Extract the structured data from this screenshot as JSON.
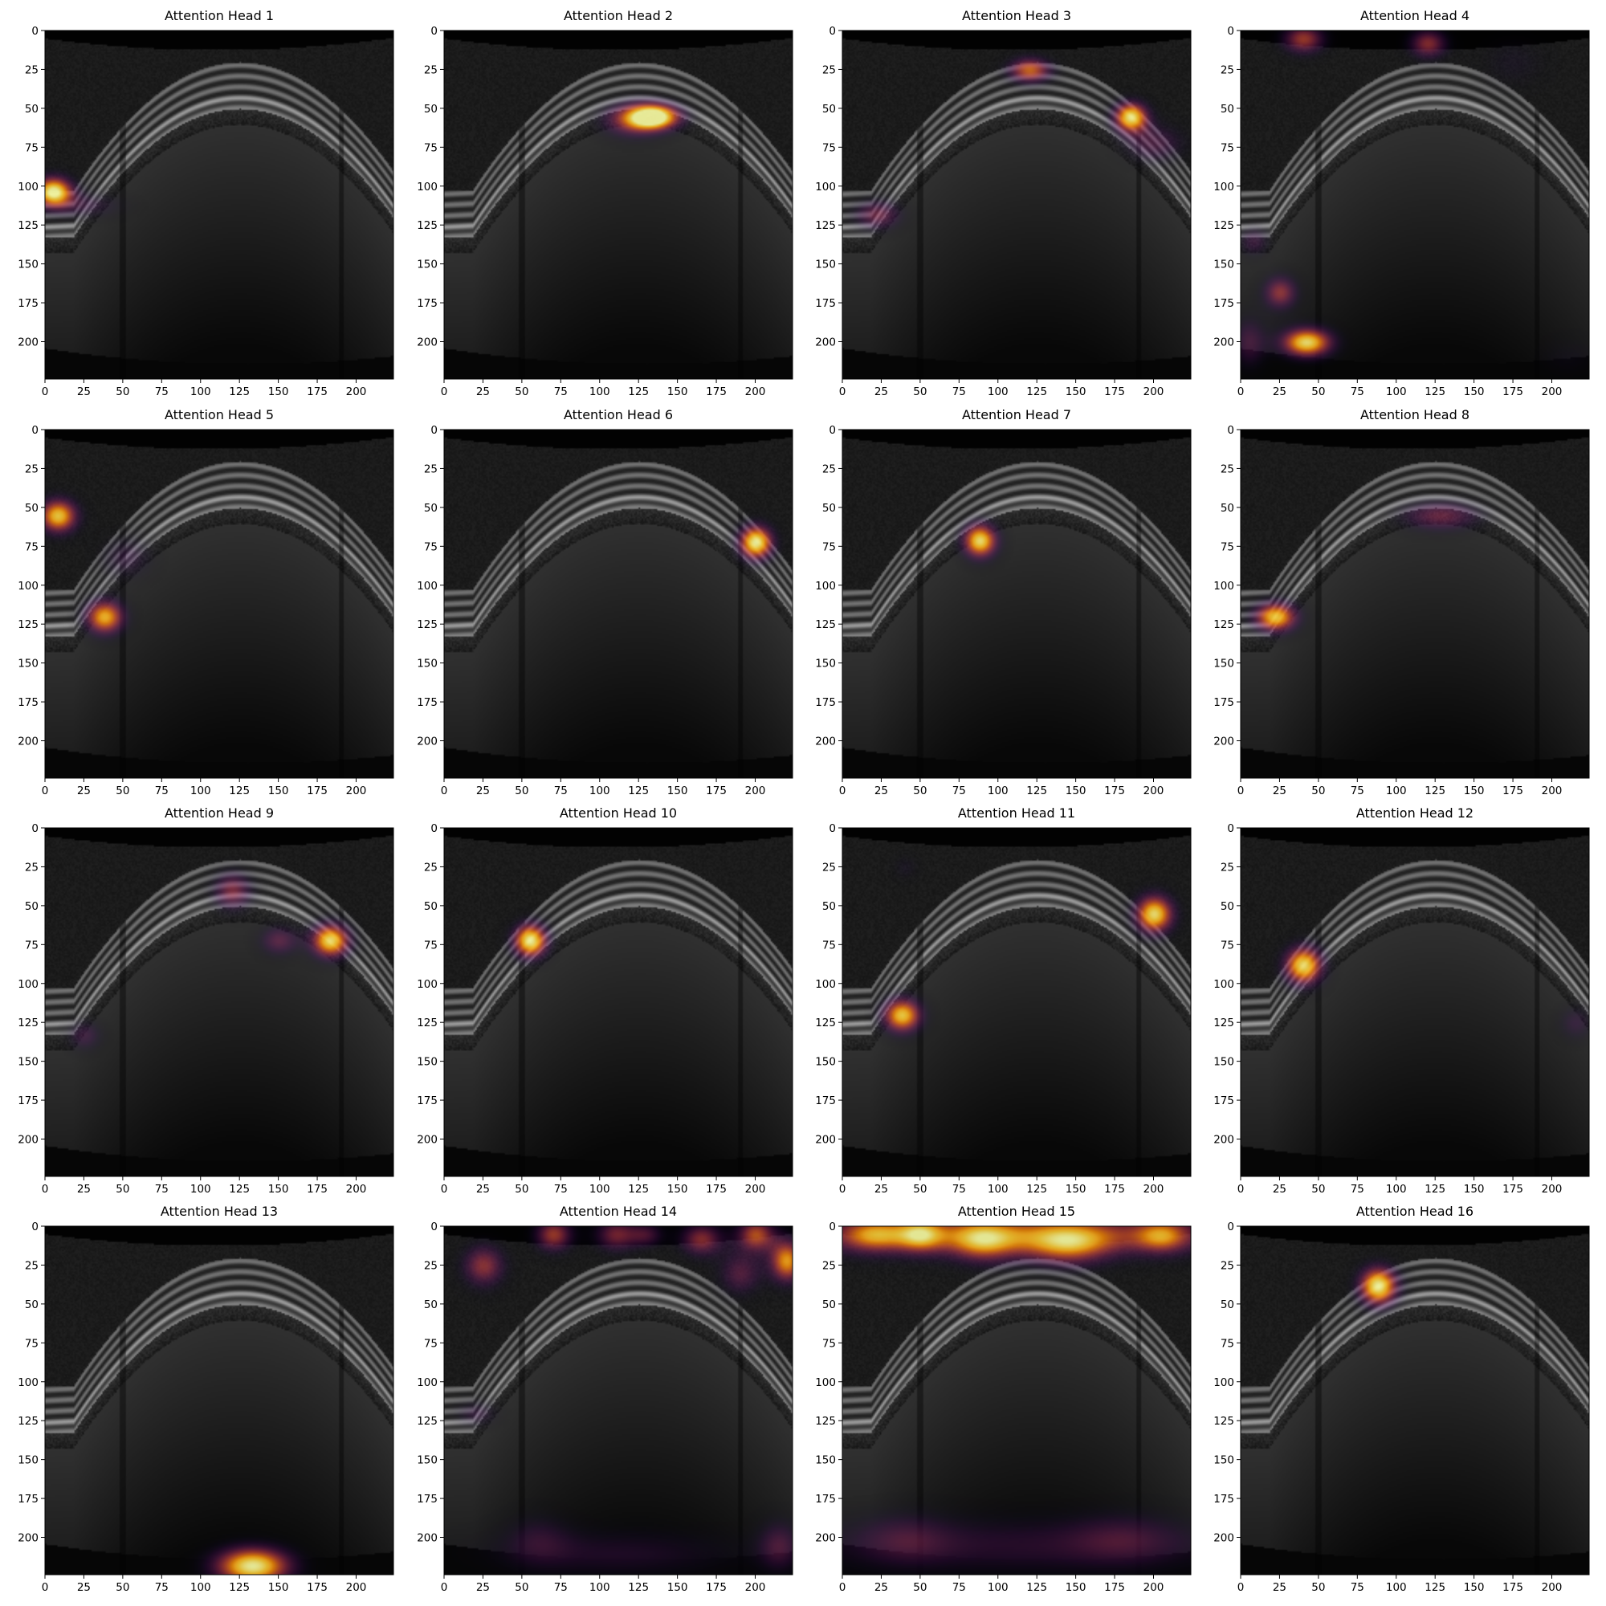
{
  "figure": {
    "colormap": "inferno",
    "background": "#ffffff"
  },
  "chart_data": [
    {
      "type": "heatmap",
      "title": "Attention Head 1",
      "xlim": [
        0,
        224
      ],
      "ylim": [
        224,
        0
      ],
      "xticks": [
        0,
        25,
        50,
        75,
        100,
        125,
        150,
        175,
        200
      ],
      "yticks": [
        0,
        25,
        50,
        75,
        100,
        125,
        150,
        175,
        200
      ],
      "hotspots": [
        {
          "x": 5,
          "y": 103,
          "sx": 9,
          "sy": 7,
          "v": 1.0
        },
        {
          "x": 25,
          "y": 112,
          "sx": 18,
          "sy": 6,
          "v": 0.25
        }
      ]
    },
    {
      "type": "heatmap",
      "title": "Attention Head 2",
      "xlim": [
        0,
        224
      ],
      "ylim": [
        224,
        0
      ],
      "xticks": [
        0,
        25,
        50,
        75,
        100,
        125,
        150,
        175,
        200
      ],
      "yticks": [
        0,
        25,
        50,
        75,
        100,
        125,
        150,
        175,
        200
      ],
      "hotspots": [
        {
          "x": 135,
          "y": 55,
          "sx": 12,
          "sy": 6,
          "v": 1.0
        },
        {
          "x": 120,
          "y": 57,
          "sx": 14,
          "sy": 8,
          "v": 0.5
        }
      ]
    },
    {
      "type": "heatmap",
      "title": "Attention Head 3",
      "xlim": [
        0,
        224
      ],
      "ylim": [
        224,
        0
      ],
      "xticks": [
        0,
        25,
        50,
        75,
        100,
        125,
        150,
        175,
        200
      ],
      "yticks": [
        0,
        25,
        50,
        75,
        100,
        125,
        150,
        175,
        200
      ],
      "hotspots": [
        {
          "x": 120,
          "y": 25,
          "sx": 10,
          "sy": 6,
          "v": 0.7
        },
        {
          "x": 185,
          "y": 55,
          "sx": 8,
          "sy": 7,
          "v": 0.95
        },
        {
          "x": 200,
          "y": 72,
          "sx": 14,
          "sy": 9,
          "v": 0.35
        },
        {
          "x": 22,
          "y": 118,
          "sx": 11,
          "sy": 7,
          "v": 0.45
        }
      ]
    },
    {
      "type": "heatmap",
      "title": "Attention Head 4",
      "xlim": [
        0,
        224
      ],
      "ylim": [
        224,
        0
      ],
      "xticks": [
        0,
        25,
        50,
        75,
        100,
        125,
        150,
        175,
        200
      ],
      "yticks": [
        0,
        25,
        50,
        75,
        100,
        125,
        150,
        175,
        200
      ],
      "hotspots": [
        {
          "x": 42,
          "y": 200,
          "sx": 12,
          "sy": 7,
          "v": 0.95
        },
        {
          "x": 25,
          "y": 168,
          "sx": 8,
          "sy": 8,
          "v": 0.55
        },
        {
          "x": 40,
          "y": 5,
          "sx": 10,
          "sy": 7,
          "v": 0.6
        },
        {
          "x": 120,
          "y": 8,
          "sx": 9,
          "sy": 7,
          "v": 0.55
        },
        {
          "x": 5,
          "y": 200,
          "sx": 8,
          "sy": 12,
          "v": 0.35
        },
        {
          "x": 8,
          "y": 135,
          "sx": 7,
          "sy": 7,
          "v": 0.3
        },
        {
          "x": 175,
          "y": 20,
          "sx": 15,
          "sy": 12,
          "v": 0.15
        },
        {
          "x": 210,
          "y": 210,
          "sx": 15,
          "sy": 10,
          "v": 0.12
        }
      ]
    },
    {
      "type": "heatmap",
      "title": "Attention Head 5",
      "xlim": [
        0,
        224
      ],
      "ylim": [
        224,
        0
      ],
      "xticks": [
        0,
        25,
        50,
        75,
        100,
        125,
        150,
        175,
        200
      ],
      "yticks": [
        0,
        25,
        50,
        75,
        100,
        125,
        150,
        175,
        200
      ],
      "hotspots": [
        {
          "x": 8,
          "y": 55,
          "sx": 9,
          "sy": 8,
          "v": 0.9
        },
        {
          "x": 38,
          "y": 120,
          "sx": 9,
          "sy": 8,
          "v": 0.85
        },
        {
          "x": 52,
          "y": 82,
          "sx": 12,
          "sy": 10,
          "v": 0.25
        }
      ]
    },
    {
      "type": "heatmap",
      "title": "Attention Head 6",
      "xlim": [
        0,
        224
      ],
      "ylim": [
        224,
        0
      ],
      "xticks": [
        0,
        25,
        50,
        75,
        100,
        125,
        150,
        175,
        200
      ],
      "yticks": [
        0,
        25,
        50,
        75,
        100,
        125,
        150,
        175,
        200
      ],
      "hotspots": [
        {
          "x": 200,
          "y": 72,
          "sx": 8,
          "sy": 8,
          "v": 1.0
        }
      ]
    },
    {
      "type": "heatmap",
      "title": "Attention Head 7",
      "xlim": [
        0,
        224
      ],
      "ylim": [
        224,
        0
      ],
      "xticks": [
        0,
        25,
        50,
        75,
        100,
        125,
        150,
        175,
        200
      ],
      "yticks": [
        0,
        25,
        50,
        75,
        100,
        125,
        150,
        175,
        200
      ],
      "hotspots": [
        {
          "x": 88,
          "y": 71,
          "sx": 8,
          "sy": 8,
          "v": 0.95
        }
      ]
    },
    {
      "type": "heatmap",
      "title": "Attention Head 8",
      "xlim": [
        0,
        224
      ],
      "ylim": [
        224,
        0
      ],
      "xticks": [
        0,
        25,
        50,
        75,
        100,
        125,
        150,
        175,
        200
      ],
      "yticks": [
        0,
        25,
        50,
        75,
        100,
        125,
        150,
        175,
        200
      ],
      "hotspots": [
        {
          "x": 22,
          "y": 120,
          "sx": 10,
          "sy": 7,
          "v": 0.9
        },
        {
          "x": 128,
          "y": 55,
          "sx": 18,
          "sy": 7,
          "v": 0.45
        }
      ]
    },
    {
      "type": "heatmap",
      "title": "Attention Head 9",
      "xlim": [
        0,
        224
      ],
      "ylim": [
        224,
        0
      ],
      "xticks": [
        0,
        25,
        50,
        75,
        100,
        125,
        150,
        175,
        200
      ],
      "yticks": [
        0,
        25,
        50,
        75,
        100,
        125,
        150,
        175,
        200
      ],
      "hotspots": [
        {
          "x": 183,
          "y": 72,
          "sx": 9,
          "sy": 8,
          "v": 0.95
        },
        {
          "x": 120,
          "y": 40,
          "sx": 9,
          "sy": 9,
          "v": 0.5
        },
        {
          "x": 150,
          "y": 72,
          "sx": 9,
          "sy": 7,
          "v": 0.4
        },
        {
          "x": 25,
          "y": 133,
          "sx": 8,
          "sy": 7,
          "v": 0.3
        }
      ]
    },
    {
      "type": "heatmap",
      "title": "Attention Head 10",
      "xlim": [
        0,
        224
      ],
      "ylim": [
        224,
        0
      ],
      "xticks": [
        0,
        25,
        50,
        75,
        100,
        125,
        150,
        175,
        200
      ],
      "yticks": [
        0,
        25,
        50,
        75,
        100,
        125,
        150,
        175,
        200
      ],
      "hotspots": [
        {
          "x": 55,
          "y": 72,
          "sx": 8,
          "sy": 8,
          "v": 1.0
        }
      ]
    },
    {
      "type": "heatmap",
      "title": "Attention Head 11",
      "xlim": [
        0,
        224
      ],
      "ylim": [
        224,
        0
      ],
      "xticks": [
        0,
        25,
        50,
        75,
        100,
        125,
        150,
        175,
        200
      ],
      "yticks": [
        0,
        25,
        50,
        75,
        100,
        125,
        150,
        175,
        200
      ],
      "hotspots": [
        {
          "x": 200,
          "y": 55,
          "sx": 9,
          "sy": 9,
          "v": 0.95
        },
        {
          "x": 38,
          "y": 120,
          "sx": 9,
          "sy": 8,
          "v": 0.9
        },
        {
          "x": 40,
          "y": 25,
          "sx": 6,
          "sy": 6,
          "v": 0.15
        }
      ]
    },
    {
      "type": "heatmap",
      "title": "Attention Head 12",
      "xlim": [
        0,
        224
      ],
      "ylim": [
        224,
        0
      ],
      "xticks": [
        0,
        25,
        50,
        75,
        100,
        125,
        150,
        175,
        200
      ],
      "yticks": [
        0,
        25,
        50,
        75,
        100,
        125,
        150,
        175,
        200
      ],
      "hotspots": [
        {
          "x": 40,
          "y": 88,
          "sx": 9,
          "sy": 9,
          "v": 0.95
        },
        {
          "x": 215,
          "y": 125,
          "sx": 8,
          "sy": 8,
          "v": 0.25
        }
      ]
    },
    {
      "type": "heatmap",
      "title": "Attention Head 13",
      "xlim": [
        0,
        224
      ],
      "ylim": [
        224,
        0
      ],
      "xticks": [
        0,
        25,
        50,
        75,
        100,
        125,
        150,
        175,
        200
      ],
      "yticks": [
        0,
        25,
        50,
        75,
        100,
        125,
        150,
        175,
        200
      ],
      "hotspots": [
        {
          "x": 133,
          "y": 218,
          "sx": 18,
          "sy": 9,
          "v": 1.0
        }
      ]
    },
    {
      "type": "heatmap",
      "title": "Attention Head 14",
      "xlim": [
        0,
        224
      ],
      "ylim": [
        224,
        0
      ],
      "xticks": [
        0,
        25,
        50,
        75,
        100,
        125,
        150,
        175,
        200
      ],
      "yticks": [
        0,
        25,
        50,
        75,
        100,
        125,
        150,
        175,
        200
      ],
      "hotspots": [
        {
          "x": 25,
          "y": 25,
          "sx": 10,
          "sy": 10,
          "v": 0.55
        },
        {
          "x": 70,
          "y": 5,
          "sx": 9,
          "sy": 8,
          "v": 0.6
        },
        {
          "x": 110,
          "y": 5,
          "sx": 10,
          "sy": 8,
          "v": 0.5
        },
        {
          "x": 165,
          "y": 8,
          "sx": 10,
          "sy": 8,
          "v": 0.55
        },
        {
          "x": 200,
          "y": 5,
          "sx": 9,
          "sy": 8,
          "v": 0.65
        },
        {
          "x": 220,
          "y": 22,
          "sx": 8,
          "sy": 10,
          "v": 0.8
        },
        {
          "x": 190,
          "y": 30,
          "sx": 10,
          "sy": 10,
          "v": 0.4
        },
        {
          "x": 130,
          "y": 5,
          "sx": 8,
          "sy": 6,
          "v": 0.35
        },
        {
          "x": 20,
          "y": 120,
          "sx": 10,
          "sy": 6,
          "v": 0.25
        },
        {
          "x": 110,
          "y": 210,
          "sx": 60,
          "sy": 12,
          "v": 0.25
        },
        {
          "x": 215,
          "y": 205,
          "sx": 10,
          "sy": 12,
          "v": 0.35
        },
        {
          "x": 60,
          "y": 200,
          "sx": 15,
          "sy": 12,
          "v": 0.2
        }
      ]
    },
    {
      "type": "heatmap",
      "title": "Attention Head 15",
      "xlim": [
        0,
        224
      ],
      "ylim": [
        224,
        0
      ],
      "xticks": [
        0,
        25,
        50,
        75,
        100,
        125,
        150,
        175,
        200
      ],
      "yticks": [
        0,
        25,
        50,
        75,
        100,
        125,
        150,
        175,
        200
      ],
      "hotspots": [
        {
          "x": 110,
          "y": 5,
          "sx": 110,
          "sy": 10,
          "v": 0.6
        },
        {
          "x": 90,
          "y": 10,
          "sx": 15,
          "sy": 10,
          "v": 0.45
        },
        {
          "x": 145,
          "y": 12,
          "sx": 20,
          "sy": 10,
          "v": 0.5
        },
        {
          "x": 20,
          "y": 5,
          "sx": 15,
          "sy": 8,
          "v": 0.45
        },
        {
          "x": 50,
          "y": 5,
          "sx": 10,
          "sy": 8,
          "v": 0.45
        },
        {
          "x": 205,
          "y": 6,
          "sx": 12,
          "sy": 8,
          "v": 0.45
        },
        {
          "x": 110,
          "y": 205,
          "sx": 110,
          "sy": 14,
          "v": 0.28
        },
        {
          "x": 40,
          "y": 200,
          "sx": 20,
          "sy": 12,
          "v": 0.2
        },
        {
          "x": 180,
          "y": 200,
          "sx": 25,
          "sy": 12,
          "v": 0.2
        }
      ]
    },
    {
      "type": "heatmap",
      "title": "Attention Head 16",
      "xlim": [
        0,
        224
      ],
      "ylim": [
        224,
        0
      ],
      "xticks": [
        0,
        25,
        50,
        75,
        100,
        125,
        150,
        175,
        200
      ],
      "yticks": [
        0,
        25,
        50,
        75,
        100,
        125,
        150,
        175,
        200
      ],
      "hotspots": [
        {
          "x": 88,
          "y": 38,
          "sx": 9,
          "sy": 9,
          "v": 1.0
        }
      ]
    }
  ]
}
